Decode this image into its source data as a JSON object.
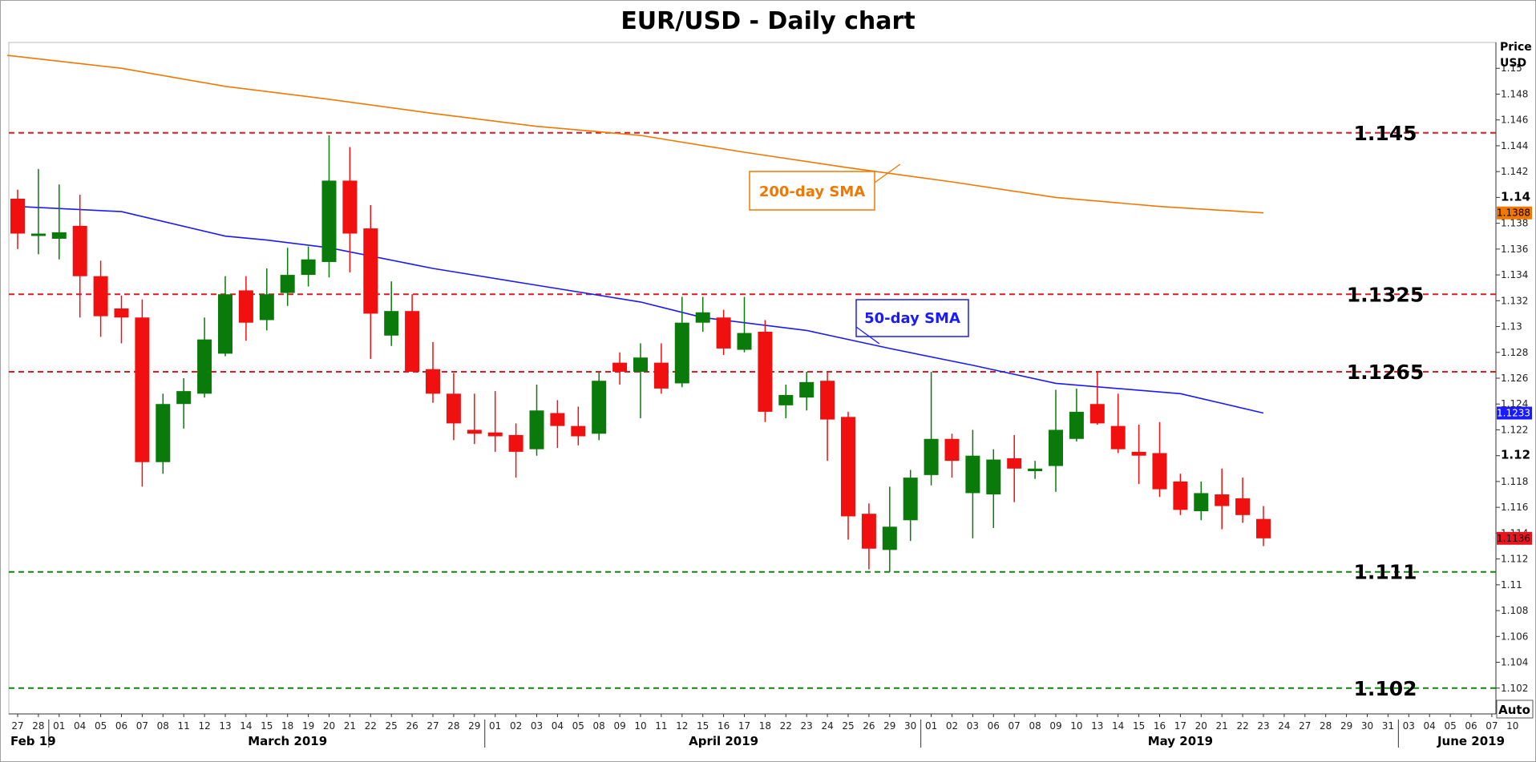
{
  "chart_data": {
    "type": "candlestick",
    "title": "EUR/USD - Daily chart",
    "y_unit": [
      "Price",
      "USD"
    ],
    "ylim": [
      1.1,
      1.152
    ],
    "y_ticks": [
      "1.102",
      "1.104",
      "1.106",
      "1.108",
      "1.11",
      "1.112",
      "1.114",
      "1.116",
      "1.118",
      "1.12",
      "1.122",
      "1.124",
      "1.126",
      "1.128",
      "1.13",
      "1.132",
      "1.134",
      "1.136",
      "1.138",
      "1.14",
      "1.142",
      "1.144",
      "1.146",
      "1.148",
      "1.15"
    ],
    "bold_y_ticks": [
      "1.14",
      "1.12"
    ],
    "x_ticks": [
      "27",
      "28",
      "01",
      "04",
      "05",
      "06",
      "07",
      "08",
      "11",
      "12",
      "13",
      "14",
      "15",
      "18",
      "19",
      "20",
      "21",
      "22",
      "25",
      "26",
      "27",
      "28",
      "29",
      "01",
      "02",
      "03",
      "04",
      "05",
      "08",
      "09",
      "10",
      "11",
      "12",
      "15",
      "16",
      "17",
      "18",
      "22",
      "23",
      "24",
      "25",
      "26",
      "29",
      "30",
      "01",
      "02",
      "03",
      "06",
      "07",
      "08",
      "09",
      "10",
      "13",
      "14",
      "15",
      "16",
      "17",
      "20",
      "21",
      "22",
      "23",
      "24",
      "27",
      "28",
      "29",
      "30",
      "31",
      "03",
      "04",
      "05",
      "06",
      "07",
      "10"
    ],
    "months": [
      {
        "label": "Feb 19",
        "at": 0
      },
      {
        "label": "March 2019",
        "at": 13
      },
      {
        "label": "April 2019",
        "at": 34
      },
      {
        "label": "May 2019",
        "at": 56
      },
      {
        "label": "June 2019",
        "at": 70
      }
    ],
    "month_separators": [
      1.5,
      22.5,
      43.5,
      66.5
    ],
    "candles": [
      {
        "date": "Feb 27",
        "o": 1.1399,
        "h": 1.1406,
        "l": 1.136,
        "c": 1.1372
      },
      {
        "date": "Feb 28",
        "o": 1.1372,
        "h": 1.1422,
        "l": 1.1356,
        "c": 1.1372
      },
      {
        "date": "Mar 01",
        "o": 1.1368,
        "h": 1.141,
        "l": 1.1352,
        "c": 1.1373
      },
      {
        "date": "Mar 04",
        "o": 1.1378,
        "h": 1.1402,
        "l": 1.1307,
        "c": 1.1339
      },
      {
        "date": "Mar 05",
        "o": 1.1339,
        "h": 1.1351,
        "l": 1.1292,
        "c": 1.1308
      },
      {
        "date": "Mar 06",
        "o": 1.1314,
        "h": 1.1324,
        "l": 1.1287,
        "c": 1.1307
      },
      {
        "date": "Mar 07",
        "o": 1.1307,
        "h": 1.1321,
        "l": 1.1176,
        "c": 1.1195
      },
      {
        "date": "Mar 08",
        "o": 1.1195,
        "h": 1.1248,
        "l": 1.1186,
        "c": 1.124
      },
      {
        "date": "Mar 11",
        "o": 1.124,
        "h": 1.126,
        "l": 1.1221,
        "c": 1.125
      },
      {
        "date": "Mar 12",
        "o": 1.1248,
        "h": 1.1307,
        "l": 1.1245,
        "c": 1.129
      },
      {
        "date": "Mar 13",
        "o": 1.1279,
        "h": 1.1339,
        "l": 1.1277,
        "c": 1.1325
      },
      {
        "date": "Mar 14",
        "o": 1.1328,
        "h": 1.1339,
        "l": 1.1289,
        "c": 1.1303
      },
      {
        "date": "Mar 15",
        "o": 1.1305,
        "h": 1.1345,
        "l": 1.1297,
        "c": 1.1325
      },
      {
        "date": "Mar 18",
        "o": 1.1326,
        "h": 1.1361,
        "l": 1.1316,
        "c": 1.134
      },
      {
        "date": "Mar 19",
        "o": 1.134,
        "h": 1.1362,
        "l": 1.1331,
        "c": 1.1352
      },
      {
        "date": "Mar 20",
        "o": 1.135,
        "h": 1.1448,
        "l": 1.1338,
        "c": 1.1413
      },
      {
        "date": "Mar 21",
        "o": 1.1413,
        "h": 1.1439,
        "l": 1.1342,
        "c": 1.1372
      },
      {
        "date": "Mar 22",
        "o": 1.1376,
        "h": 1.1394,
        "l": 1.1275,
        "c": 1.131
      },
      {
        "date": "Mar 25",
        "o": 1.1293,
        "h": 1.1335,
        "l": 1.1285,
        "c": 1.1312
      },
      {
        "date": "Mar 26",
        "o": 1.1312,
        "h": 1.1325,
        "l": 1.1265,
        "c": 1.1265
      },
      {
        "date": "Mar 27",
        "o": 1.1267,
        "h": 1.1288,
        "l": 1.1241,
        "c": 1.1248
      },
      {
        "date": "Mar 28",
        "o": 1.1248,
        "h": 1.1264,
        "l": 1.1212,
        "c": 1.1225
      },
      {
        "date": "Mar 29",
        "o": 1.122,
        "h": 1.1248,
        "l": 1.1209,
        "c": 1.1217
      },
      {
        "date": "Apr 01",
        "o": 1.1218,
        "h": 1.125,
        "l": 1.1203,
        "c": 1.1215
      },
      {
        "date": "Apr 02",
        "o": 1.1216,
        "h": 1.1225,
        "l": 1.1183,
        "c": 1.1203
      },
      {
        "date": "Apr 03",
        "o": 1.1205,
        "h": 1.1255,
        "l": 1.12,
        "c": 1.1235
      },
      {
        "date": "Apr 04",
        "o": 1.1233,
        "h": 1.1243,
        "l": 1.1206,
        "c": 1.1223
      },
      {
        "date": "Apr 05",
        "o": 1.1223,
        "h": 1.1238,
        "l": 1.1208,
        "c": 1.1215
      },
      {
        "date": "Apr 08",
        "o": 1.1217,
        "h": 1.1265,
        "l": 1.1212,
        "c": 1.1258
      },
      {
        "date": "Apr 09",
        "o": 1.1272,
        "h": 1.128,
        "l": 1.1255,
        "c": 1.1265
      },
      {
        "date": "Apr 10",
        "o": 1.1265,
        "h": 1.1287,
        "l": 1.1229,
        "c": 1.1276
      },
      {
        "date": "Apr 11",
        "o": 1.1272,
        "h": 1.1287,
        "l": 1.1248,
        "c": 1.1252
      },
      {
        "date": "Apr 12",
        "o": 1.1256,
        "h": 1.1323,
        "l": 1.1253,
        "c": 1.1303
      },
      {
        "date": "Apr 15",
        "o": 1.1303,
        "h": 1.1323,
        "l": 1.1296,
        "c": 1.1311
      },
      {
        "date": "Apr 16",
        "o": 1.1307,
        "h": 1.1313,
        "l": 1.1278,
        "c": 1.1283
      },
      {
        "date": "Apr 17",
        "o": 1.1282,
        "h": 1.1323,
        "l": 1.128,
        "c": 1.1295
      },
      {
        "date": "Apr 18",
        "o": 1.1296,
        "h": 1.1305,
        "l": 1.1226,
        "c": 1.1234
      },
      {
        "date": "Apr 22",
        "o": 1.1239,
        "h": 1.1255,
        "l": 1.1229,
        "c": 1.1247
      },
      {
        "date": "Apr 23",
        "o": 1.1245,
        "h": 1.1265,
        "l": 1.1235,
        "c": 1.1257
      },
      {
        "date": "Apr 24",
        "o": 1.1258,
        "h": 1.1265,
        "l": 1.1196,
        "c": 1.1228
      },
      {
        "date": "Apr 25",
        "o": 1.123,
        "h": 1.1234,
        "l": 1.1135,
        "c": 1.1153
      },
      {
        "date": "Apr 26",
        "o": 1.1155,
        "h": 1.1163,
        "l": 1.1112,
        "c": 1.1128
      },
      {
        "date": "Apr 29",
        "o": 1.1127,
        "h": 1.1176,
        "l": 1.111,
        "c": 1.1145
      },
      {
        "date": "Apr 30",
        "o": 1.115,
        "h": 1.1189,
        "l": 1.1134,
        "c": 1.1183
      },
      {
        "date": "May 01",
        "o": 1.1185,
        "h": 1.1265,
        "l": 1.1177,
        "c": 1.1213
      },
      {
        "date": "May 02",
        "o": 1.1213,
        "h": 1.1217,
        "l": 1.1183,
        "c": 1.1196
      },
      {
        "date": "May 03",
        "o": 1.1171,
        "h": 1.122,
        "l": 1.1136,
        "c": 1.12
      },
      {
        "date": "May 06",
        "o": 1.117,
        "h": 1.1205,
        "l": 1.1144,
        "c": 1.1197
      },
      {
        "date": "May 07",
        "o": 1.1198,
        "h": 1.1216,
        "l": 1.1164,
        "c": 1.119
      },
      {
        "date": "May 08",
        "o": 1.1188,
        "h": 1.1196,
        "l": 1.1182,
        "c": 1.119
      },
      {
        "date": "May 09",
        "o": 1.1192,
        "h": 1.1251,
        "l": 1.1172,
        "c": 1.122
      },
      {
        "date": "May 10",
        "o": 1.1213,
        "h": 1.1252,
        "l": 1.1211,
        "c": 1.1234
      },
      {
        "date": "May 13",
        "o": 1.124,
        "h": 1.1265,
        "l": 1.1224,
        "c": 1.1225
      },
      {
        "date": "May 14",
        "o": 1.1223,
        "h": 1.1248,
        "l": 1.1202,
        "c": 1.1205
      },
      {
        "date": "May 15",
        "o": 1.1203,
        "h": 1.1224,
        "l": 1.1178,
        "c": 1.12
      },
      {
        "date": "May 16",
        "o": 1.1202,
        "h": 1.1226,
        "l": 1.1168,
        "c": 1.1174
      },
      {
        "date": "May 17",
        "o": 1.118,
        "h": 1.1186,
        "l": 1.1154,
        "c": 1.1158
      },
      {
        "date": "May 20",
        "o": 1.1157,
        "h": 1.118,
        "l": 1.115,
        "c": 1.1171
      },
      {
        "date": "May 21",
        "o": 1.117,
        "h": 1.119,
        "l": 1.1143,
        "c": 1.1161
      },
      {
        "date": "May 22",
        "o": 1.1167,
        "h": 1.1183,
        "l": 1.1148,
        "c": 1.1154
      },
      {
        "date": "May 23",
        "o": 1.1151,
        "h": 1.1161,
        "l": 1.113,
        "c": 1.1136
      }
    ],
    "sma50": {
      "name": "50-day SMA",
      "color": "#1a1aff",
      "points": [
        [
          0,
          1.1393
        ],
        [
          5,
          1.1389
        ],
        [
          10,
          1.137
        ],
        [
          12,
          1.1367
        ],
        [
          15,
          1.1361
        ],
        [
          20,
          1.1345
        ],
        [
          25,
          1.1332
        ],
        [
          30,
          1.1319
        ],
        [
          33,
          1.1307
        ],
        [
          38,
          1.1297
        ],
        [
          42,
          1.1283
        ],
        [
          46,
          1.127
        ],
        [
          50,
          1.1256
        ],
        [
          53,
          1.1252
        ],
        [
          56,
          1.1248
        ],
        [
          60,
          1.1233
        ]
      ]
    },
    "sma200": {
      "name": "200-day SMA",
      "color": "#f07800",
      "points": [
        [
          -0.5,
          1.151
        ],
        [
          5,
          1.15
        ],
        [
          10,
          1.1486
        ],
        [
          15,
          1.1476
        ],
        [
          20,
          1.1465
        ],
        [
          25,
          1.1455
        ],
        [
          30,
          1.1448
        ],
        [
          35,
          1.1435
        ],
        [
          40,
          1.1423
        ],
        [
          45,
          1.1412
        ],
        [
          50,
          1.14
        ],
        [
          55,
          1.1393
        ],
        [
          60,
          1.1388
        ]
      ]
    },
    "levels": [
      {
        "value": 1.145,
        "label": "1.145",
        "color": "#e8141e"
      },
      {
        "value": 1.1325,
        "label": "1.1325",
        "color": "#e8141e"
      },
      {
        "value": 1.1265,
        "label": "1.1265",
        "color": "#e8141e"
      },
      {
        "value": 1.111,
        "label": "1.111",
        "color": "#0a8a0a"
      },
      {
        "value": 1.102,
        "label": "1.102",
        "color": "#0a8a0a"
      }
    ],
    "price_tags": [
      {
        "value": 1.1388,
        "label": "1.1388",
        "bg": "#f07800",
        "fg": "#000000"
      },
      {
        "value": 1.1233,
        "label": "1.1233",
        "bg": "#1a1aff",
        "fg": "#ffffff"
      },
      {
        "value": 1.1136,
        "label": "1.1136",
        "bg": "#e8141e",
        "fg": "#000000"
      }
    ],
    "annotations": [
      {
        "text": "200-day SMA",
        "color": "#f07800",
        "anchor_index": 42.5
      },
      {
        "text": "50-day SMA",
        "color": "#1a1aff",
        "anchor_index": 41.5
      }
    ],
    "colors": {
      "up": "#0a7a0a",
      "down": "#f01010"
    },
    "auto_button": "Auto"
  }
}
